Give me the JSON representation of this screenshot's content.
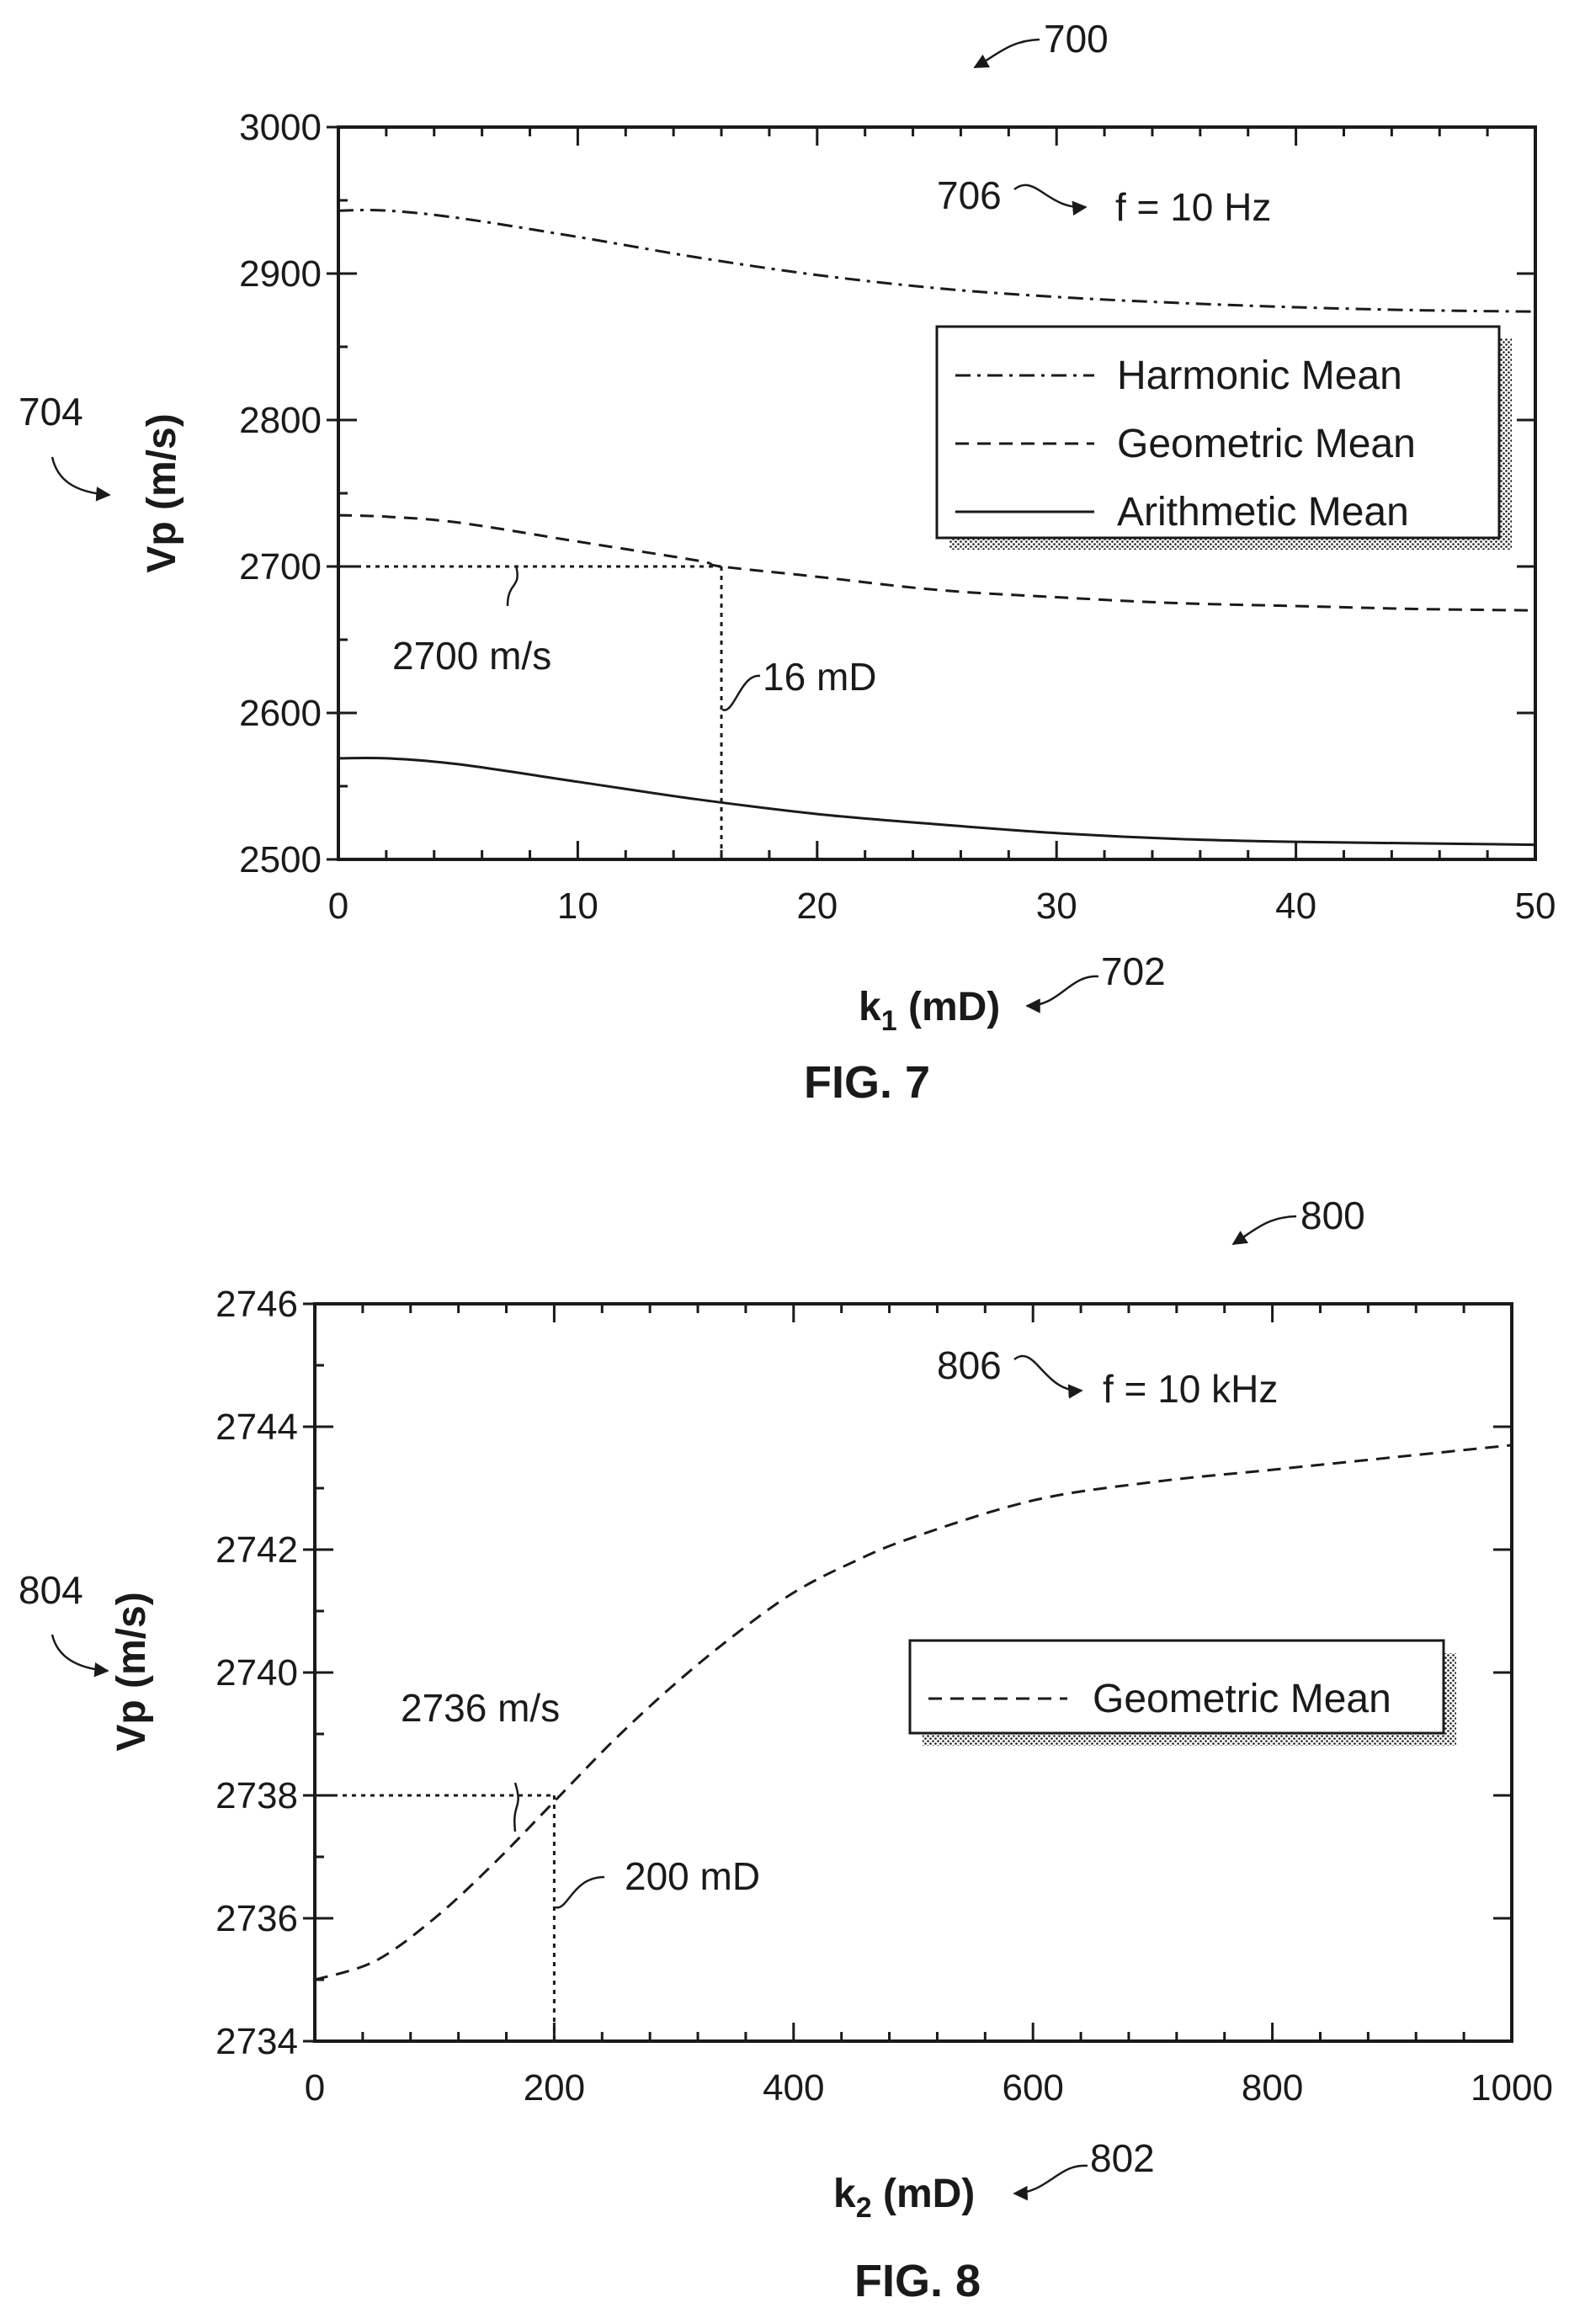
{
  "figures": [
    {
      "caption": "FIG. 7",
      "ref": "700",
      "frequency_label": "f = 10 Hz",
      "frequency_ref": "706",
      "xlabel_main": "k",
      "xlabel_sub": "1",
      "xlabel_unit": " (mD)",
      "xlabel_ref": "702",
      "ylabel": "Vp (m/s)",
      "ylabel_ref": "704",
      "annotation_value": "2700 m/s",
      "annotation_perm": "16 mD"
    },
    {
      "caption": "FIG. 8",
      "ref": "800",
      "frequency_label": "f = 10 kHz",
      "frequency_ref": "806",
      "xlabel_main": "k",
      "xlabel_sub": "2",
      "xlabel_unit": " (mD)",
      "xlabel_ref": "802",
      "ylabel": "Vp (m/s)",
      "ylabel_ref": "804",
      "annotation_value": "2736 m/s",
      "annotation_perm": "200 mD"
    }
  ],
  "chart_data": [
    {
      "type": "line",
      "title": "",
      "xlabel": "k1 (mD)",
      "ylabel": "Vp (m/s)",
      "xlim": [
        0,
        50
      ],
      "ylim": [
        2500,
        3000
      ],
      "x_ticks": [
        0,
        10,
        20,
        30,
        40,
        50
      ],
      "y_ticks": [
        2500,
        2600,
        2700,
        2800,
        2900,
        3000
      ],
      "legend_position": "center-right",
      "grid": false,
      "series": [
        {
          "name": "Harmonic Mean",
          "style": "dash-dot",
          "x": [
            0,
            2,
            5,
            10,
            15,
            20,
            25,
            30,
            35,
            40,
            45,
            50
          ],
          "y": [
            2943,
            2943,
            2938,
            2925,
            2911,
            2899,
            2890,
            2884,
            2880,
            2877,
            2875,
            2874
          ]
        },
        {
          "name": "Geometric Mean",
          "style": "dashed",
          "x": [
            0,
            2,
            5,
            10,
            15,
            16,
            20,
            25,
            30,
            35,
            40,
            45,
            50
          ],
          "y": [
            2735,
            2734,
            2730,
            2717,
            2704,
            2700,
            2693,
            2684,
            2679,
            2675,
            2673,
            2671,
            2670
          ]
        },
        {
          "name": "Arithmetic Mean",
          "style": "solid",
          "x": [
            0,
            2,
            5,
            10,
            15,
            20,
            25,
            30,
            35,
            40,
            45,
            50
          ],
          "y": [
            2569,
            2569,
            2565,
            2553,
            2541,
            2531,
            2524,
            2518,
            2514,
            2512,
            2511,
            2510
          ]
        }
      ],
      "reference_point": {
        "x": 16,
        "y": 2700
      }
    },
    {
      "type": "line",
      "title": "",
      "xlabel": "k2 (mD)",
      "ylabel": "Vp (m/s)",
      "xlim": [
        0,
        1000
      ],
      "ylim": [
        2734,
        2746
      ],
      "x_ticks": [
        0,
        200,
        400,
        600,
        800,
        1000
      ],
      "y_ticks": [
        2734,
        2736,
        2738,
        2740,
        2742,
        2744,
        2746
      ],
      "legend_position": "center-right",
      "grid": false,
      "series": [
        {
          "name": "Geometric Mean",
          "style": "dashed",
          "x": [
            0,
            50,
            100,
            150,
            200,
            250,
            300,
            350,
            400,
            450,
            500,
            600,
            700,
            800,
            900,
            1000
          ],
          "y": [
            2735.0,
            2735.3,
            2736.0,
            2736.9,
            2737.9,
            2738.9,
            2739.8,
            2740.6,
            2741.3,
            2741.8,
            2742.2,
            2742.8,
            2743.1,
            2743.3,
            2743.5,
            2743.7
          ]
        }
      ],
      "reference_point": {
        "x": 200,
        "y": 2738
      }
    }
  ]
}
